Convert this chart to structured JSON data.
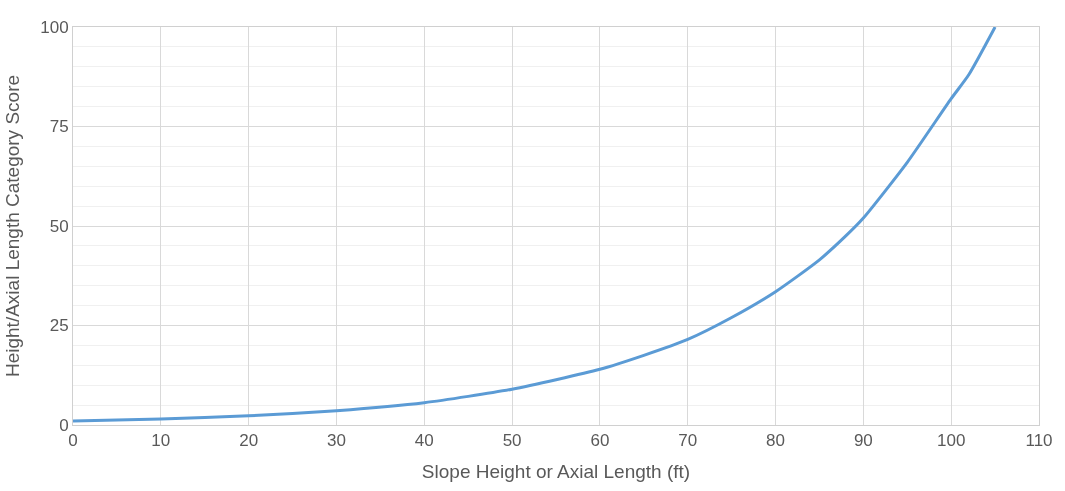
{
  "chart_data": {
    "type": "line",
    "xlabel": "Slope Height or Axial Length (ft)",
    "ylabel": "Height/Axial Length Category Score",
    "x": [
      0,
      10,
      20,
      30,
      40,
      50,
      60,
      65,
      70,
      75,
      80,
      85,
      88,
      90,
      95,
      100,
      102,
      105
    ],
    "series": [
      {
        "color": "#5b9bd5",
        "values": [
          1,
          1.5,
          2.3,
          3.6,
          5.6,
          9,
          14,
          17.5,
          21.5,
          27,
          33.5,
          41.5,
          47.5,
          52,
          66,
          82,
          88,
          100
        ]
      }
    ],
    "xlim": [
      0,
      110
    ],
    "xticks": [
      0,
      10,
      20,
      30,
      40,
      50,
      60,
      70,
      80,
      90,
      100,
      110
    ],
    "ylim": [
      0,
      100
    ],
    "yticks": [
      0,
      25,
      50,
      75,
      100
    ],
    "grid": true,
    "marker": "none",
    "line_style": "solid"
  }
}
